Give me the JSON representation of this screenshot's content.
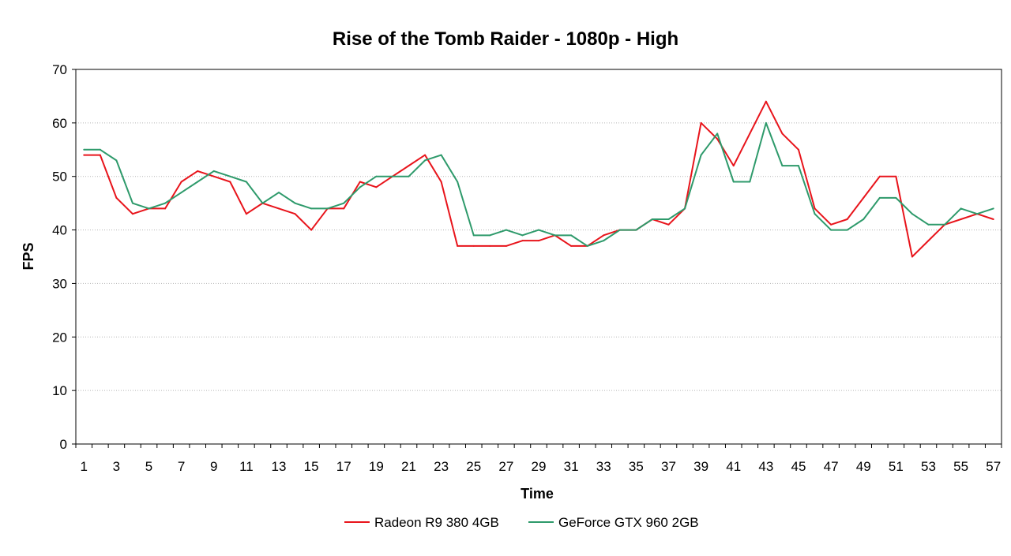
{
  "chart_data": {
    "type": "line",
    "title": "Rise of the Tomb Raider - 1080p - High",
    "xlabel": "Time",
    "ylabel": "FPS",
    "ylim": [
      0,
      70
    ],
    "yticks": [
      0,
      10,
      20,
      30,
      40,
      50,
      60,
      70
    ],
    "grid": true,
    "legend_position": "bottom",
    "x": [
      1,
      2,
      3,
      4,
      5,
      6,
      7,
      8,
      9,
      10,
      11,
      12,
      13,
      14,
      15,
      16,
      17,
      18,
      19,
      20,
      21,
      22,
      23,
      24,
      25,
      26,
      27,
      28,
      29,
      30,
      31,
      32,
      33,
      34,
      35,
      36,
      37,
      38,
      39,
      40,
      41,
      42,
      43,
      44,
      45,
      46,
      47,
      48,
      49,
      50,
      51,
      52,
      53,
      54,
      55,
      56,
      57
    ],
    "xtick_labels": [
      "1",
      "3",
      "5",
      "7",
      "9",
      "11",
      "13",
      "15",
      "17",
      "19",
      "21",
      "23",
      "25",
      "27",
      "29",
      "31",
      "33",
      "35",
      "37",
      "39",
      "41",
      "43",
      "45",
      "47",
      "49",
      "51",
      "53",
      "55",
      "57"
    ],
    "series": [
      {
        "name": "Radeon R9 380 4GB",
        "color": "#e8141b",
        "values": [
          54,
          54,
          46,
          43,
          44,
          44,
          49,
          51,
          50,
          49,
          43,
          45,
          44,
          43,
          40,
          44,
          44,
          49,
          48,
          50,
          52,
          54,
          49,
          37,
          37,
          37,
          37,
          38,
          38,
          39,
          37,
          37,
          39,
          40,
          40,
          42,
          41,
          44,
          60,
          57,
          52,
          58,
          64,
          58,
          55,
          44,
          41,
          42,
          46,
          50,
          50,
          35,
          38,
          41,
          42,
          43,
          42
        ]
      },
      {
        "name": "GeForce GTX 960 2GB",
        "color": "#2e9a6b",
        "values": [
          55,
          55,
          53,
          45,
          44,
          45,
          47,
          49,
          51,
          50,
          49,
          45,
          47,
          45,
          44,
          44,
          45,
          48,
          50,
          50,
          50,
          53,
          54,
          49,
          39,
          39,
          40,
          39,
          40,
          39,
          39,
          37,
          38,
          40,
          40,
          42,
          42,
          44,
          54,
          58,
          49,
          49,
          60,
          52,
          52,
          43,
          40,
          40,
          42,
          46,
          46,
          43,
          41,
          41,
          44,
          43,
          44
        ]
      }
    ]
  }
}
